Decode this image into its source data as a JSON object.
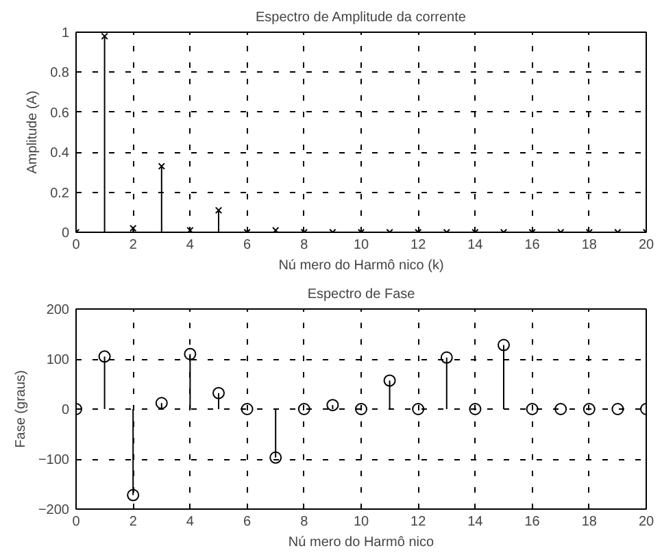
{
  "chart_data": [
    {
      "type": "lollipop",
      "title": "Espectro de Amplitude da corrente",
      "xlabel": "Nú mero do Harmô nico (k)",
      "ylabel": "Amplitude (A)",
      "x": [
        0,
        1,
        2,
        3,
        4,
        5,
        6,
        7,
        8,
        9,
        10,
        11,
        12,
        13,
        14,
        15,
        16,
        17,
        18,
        19,
        20
      ],
      "series": [
        {
          "color": "#000000",
          "values": [
            0,
            0.98,
            0.02,
            0.33,
            0.01,
            0.11,
            0,
            0.01,
            0,
            0,
            0,
            0,
            0,
            0,
            0,
            0,
            0,
            0,
            0,
            0,
            0
          ]
        }
      ],
      "xlim": [
        0,
        20
      ],
      "xticks": [
        0,
        2,
        4,
        6,
        8,
        10,
        12,
        14,
        16,
        18,
        20
      ],
      "ylim": [
        0,
        1
      ],
      "yticks": [
        0,
        0.2,
        0.4,
        0.6,
        0.8,
        1
      ],
      "grid": true,
      "marker": "cross"
    },
    {
      "type": "lollipop",
      "title": "Espectro de Fase",
      "xlabel": "Nú mero do Harmô nico",
      "ylabel": "Fase (graus)",
      "x": [
        0,
        1,
        2,
        3,
        4,
        5,
        6,
        7,
        8,
        9,
        10,
        11,
        12,
        13,
        14,
        15,
        16,
        17,
        18,
        19,
        20
      ],
      "series": [
        {
          "color": "#000000",
          "values": [
            0,
            105,
            -172,
            12,
            110,
            32,
            0,
            -97,
            0,
            8,
            0,
            57,
            0,
            103,
            0,
            128,
            0,
            0,
            0,
            0,
            0
          ]
        }
      ],
      "xlim": [
        0,
        20
      ],
      "xticks": [
        0,
        2,
        4,
        6,
        8,
        10,
        12,
        14,
        16,
        18,
        20
      ],
      "ylim": [
        -200,
        200
      ],
      "yticks": [
        -200,
        -100,
        0,
        100,
        200
      ],
      "grid": true,
      "marker": "circle"
    }
  ]
}
